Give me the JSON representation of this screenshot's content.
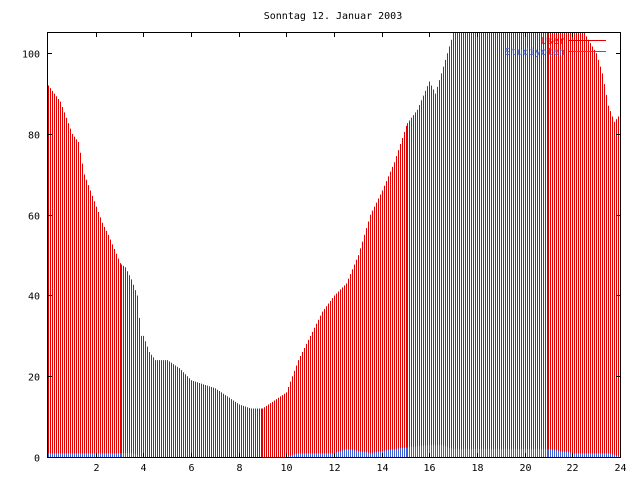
{
  "chart_data": {
    "type": "bar",
    "title": "Sonntag 12. Januar 2003",
    "xlabel": "",
    "ylabel": "",
    "xlim": [
      0,
      24
    ],
    "ylim": [
      0,
      105
    ],
    "x_ticks": [
      {
        "value": 2,
        "label": "2"
      },
      {
        "value": 4,
        "label": "4"
      },
      {
        "value": 6,
        "label": "6"
      },
      {
        "value": 8,
        "label": "8"
      },
      {
        "value": 10,
        "label": "10"
      },
      {
        "value": 12,
        "label": "12"
      },
      {
        "value": 14,
        "label": "14"
      },
      {
        "value": 16,
        "label": "16"
      },
      {
        "value": 18,
        "label": "18"
      },
      {
        "value": 20,
        "label": "20"
      },
      {
        "value": 22,
        "label": "22"
      },
      {
        "value": 24,
        "label": "24"
      }
    ],
    "y_ticks": [
      {
        "value": 0,
        "label": "0"
      },
      {
        "value": 20,
        "label": "20"
      },
      {
        "value": 40,
        "label": "40"
      },
      {
        "value": 60,
        "label": "60"
      },
      {
        "value": 80,
        "label": "80"
      },
      {
        "value": 100,
        "label": "100"
      }
    ],
    "grid": false,
    "legend_position": "top-right",
    "series": [
      {
        "name": "User",
        "color": "#e00000",
        "style": "impulses",
        "points": [
          [
            0.0,
            92
          ],
          [
            0.5,
            88
          ],
          [
            1.0,
            80
          ],
          [
            1.25,
            78
          ],
          [
            1.5,
            70
          ],
          [
            2.0,
            62
          ],
          [
            2.25,
            58
          ],
          [
            2.5,
            55
          ],
          [
            3.0,
            48
          ],
          [
            3.25,
            47
          ],
          [
            3.5,
            44
          ],
          [
            3.75,
            40
          ],
          [
            3.9,
            30
          ],
          [
            4.0,
            30
          ],
          [
            4.25,
            26
          ],
          [
            4.5,
            24
          ],
          [
            5.0,
            24
          ],
          [
            5.5,
            22
          ],
          [
            6.0,
            19
          ],
          [
            6.5,
            18
          ],
          [
            7.0,
            17
          ],
          [
            7.5,
            15
          ],
          [
            8.0,
            13
          ],
          [
            8.5,
            12
          ],
          [
            9.0,
            12
          ],
          [
            9.5,
            14
          ],
          [
            10.0,
            16
          ],
          [
            10.5,
            24
          ],
          [
            11.0,
            30
          ],
          [
            11.5,
            36
          ],
          [
            12.0,
            40
          ],
          [
            12.5,
            43
          ],
          [
            13.0,
            50
          ],
          [
            13.5,
            60
          ],
          [
            14.0,
            66
          ],
          [
            14.5,
            73
          ],
          [
            15.0,
            82
          ],
          [
            15.5,
            86
          ],
          [
            16.0,
            93
          ],
          [
            16.25,
            90
          ],
          [
            16.5,
            95
          ],
          [
            17.0,
            105
          ],
          [
            18.0,
            105
          ],
          [
            19.0,
            105
          ],
          [
            20.0,
            105
          ],
          [
            21.0,
            105
          ],
          [
            22.0,
            105
          ],
          [
            22.5,
            105
          ],
          [
            23.0,
            100
          ],
          [
            23.25,
            95
          ],
          [
            23.5,
            87
          ],
          [
            23.75,
            83
          ],
          [
            24.0,
            85
          ]
        ]
      },
      {
        "name": "Studiyoten",
        "color": "#4060d0",
        "style": "impulses",
        "points": [
          [
            0.0,
            1
          ],
          [
            3.0,
            1
          ],
          [
            3.5,
            1
          ],
          [
            4.0,
            0
          ],
          [
            10.0,
            0
          ],
          [
            10.5,
            1
          ],
          [
            12.0,
            1
          ],
          [
            12.5,
            2
          ],
          [
            13.5,
            1
          ],
          [
            14.5,
            2
          ],
          [
            16.0,
            3
          ],
          [
            16.5,
            3
          ],
          [
            17.0,
            2
          ],
          [
            20.0,
            2
          ],
          [
            21.0,
            2
          ],
          [
            22.0,
            1
          ],
          [
            23.5,
            1
          ],
          [
            24.0,
            0
          ]
        ]
      }
    ]
  }
}
